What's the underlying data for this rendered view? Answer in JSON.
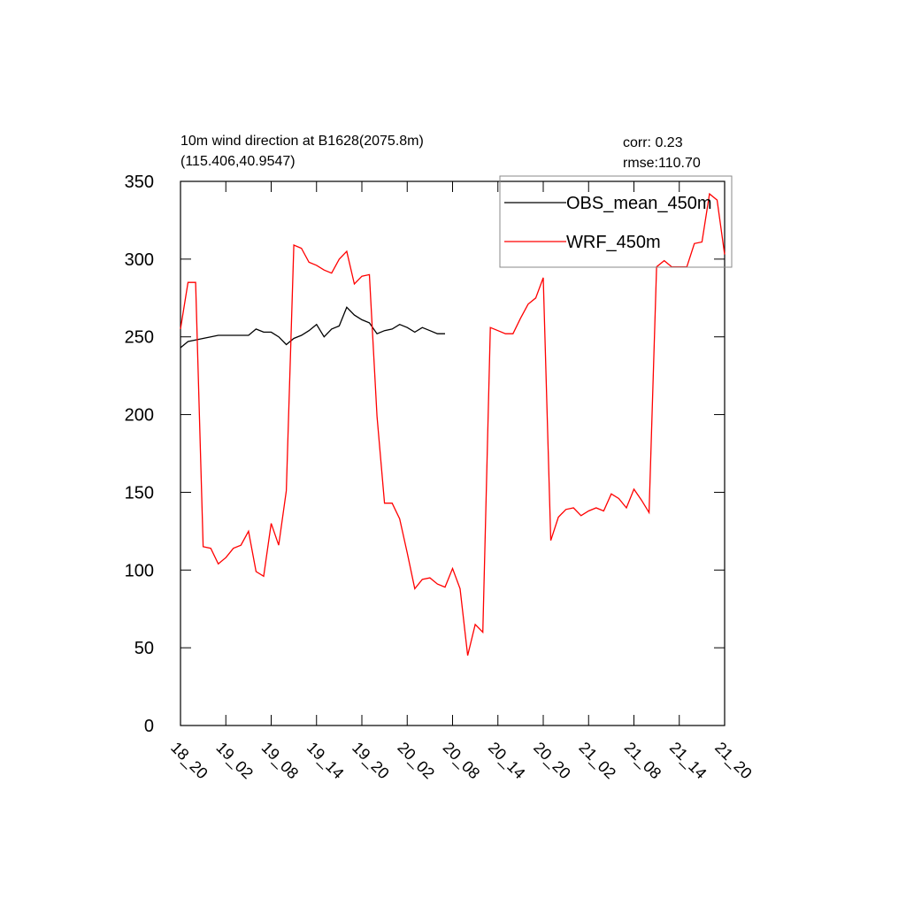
{
  "chart_data": {
    "type": "line",
    "title": "10m wind direction at B1628(2075.8m)",
    "subtitle": "(115.406,40.9547)",
    "annotations": [
      "corr:  0.23",
      "rmse:110.70"
    ],
    "x": [
      0,
      1,
      2,
      3,
      4,
      5,
      6,
      7,
      8,
      9,
      10,
      11,
      12,
      13,
      14,
      15,
      16,
      17,
      18,
      19,
      20,
      21,
      22,
      23,
      24,
      25,
      26,
      27,
      28,
      29,
      30,
      31,
      32,
      33,
      34,
      35,
      36,
      37,
      38,
      39,
      40,
      41,
      42,
      43,
      44,
      45,
      46,
      47,
      48,
      49,
      50,
      51,
      52,
      53,
      54,
      55,
      56,
      57,
      58,
      59,
      60,
      61,
      62,
      63,
      64,
      65,
      66,
      67,
      68,
      69,
      70,
      71,
      72
    ],
    "series": [
      {
        "name": "OBS_mean_450m",
        "color": "#000000",
        "values": [
          243,
          247,
          248,
          249,
          250,
          251,
          251,
          251,
          251,
          251,
          255,
          253,
          253,
          250,
          245,
          249,
          251,
          254,
          258,
          250,
          255,
          257,
          269,
          264,
          261,
          259,
          252,
          254,
          255,
          258,
          256,
          253,
          256,
          254,
          252,
          252,
          null,
          null,
          null,
          null,
          null,
          null,
          null,
          null,
          null,
          null,
          null,
          null,
          null,
          null,
          null,
          null,
          null,
          null,
          null,
          null,
          null,
          null,
          null,
          null,
          null,
          null,
          null,
          null,
          null,
          null,
          null,
          null,
          null,
          null,
          null,
          null,
          null
        ]
      },
      {
        "name": "WRF_450m",
        "color": "#ff0000",
        "values": [
          255,
          285,
          285,
          115,
          114,
          104,
          108,
          114,
          116,
          125,
          99,
          96,
          130,
          116,
          151,
          309,
          307,
          298,
          296,
          293,
          291,
          300,
          305,
          284,
          289,
          290,
          199,
          143,
          143,
          133,
          111,
          88,
          94,
          95,
          91,
          89,
          101,
          88,
          45,
          65,
          60,
          256,
          254,
          252,
          252,
          262,
          271,
          275,
          288,
          119,
          134,
          139,
          140,
          135,
          138,
          140,
          138,
          149,
          146,
          140,
          152,
          145,
          137,
          295,
          299,
          295,
          295,
          295,
          310,
          311,
          342,
          338,
          303
        ]
      }
    ],
    "xlim": [
      0,
      72
    ],
    "xticks": [
      {
        "value": 0,
        "label": "18_20"
      },
      {
        "value": 6,
        "label": "19_02"
      },
      {
        "value": 12,
        "label": "19_08"
      },
      {
        "value": 18,
        "label": "19_14"
      },
      {
        "value": 24,
        "label": "19_20"
      },
      {
        "value": 30,
        "label": "20_02"
      },
      {
        "value": 36,
        "label": "20_08"
      },
      {
        "value": 42,
        "label": "20_14"
      },
      {
        "value": 48,
        "label": "20_20"
      },
      {
        "value": 54,
        "label": "21_02"
      },
      {
        "value": 60,
        "label": "21_08"
      },
      {
        "value": 66,
        "label": "21_14"
      },
      {
        "value": 72,
        "label": "21_20"
      }
    ],
    "ylim": [
      0,
      350
    ],
    "yticks": [
      0,
      50,
      100,
      150,
      200,
      250,
      300,
      350
    ],
    "legend": "top-right"
  }
}
